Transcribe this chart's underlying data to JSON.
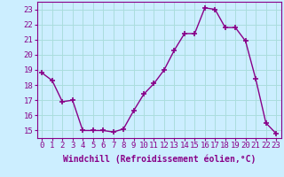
{
  "x": [
    0,
    1,
    2,
    3,
    4,
    5,
    6,
    7,
    8,
    9,
    10,
    11,
    12,
    13,
    14,
    15,
    16,
    17,
    18,
    19,
    20,
    21,
    22,
    23
  ],
  "y": [
    18.8,
    18.3,
    16.9,
    17.0,
    15.0,
    15.0,
    15.0,
    14.9,
    15.1,
    16.3,
    17.4,
    18.1,
    19.0,
    20.3,
    21.4,
    21.4,
    23.1,
    23.0,
    21.8,
    21.8,
    20.9,
    18.4,
    15.5,
    14.8
  ],
  "line_color": "#880088",
  "marker": "+",
  "marker_size": 4,
  "bg_color": "#cceeff",
  "grid_color": "#aadddd",
  "xlabel": "Windchill (Refroidissement éolien,°C)",
  "xlabel_fontsize": 7,
  "tick_fontsize": 6.5,
  "ylim": [
    14.5,
    23.5
  ],
  "yticks": [
    15,
    16,
    17,
    18,
    19,
    20,
    21,
    22,
    23
  ],
  "xticks": [
    0,
    1,
    2,
    3,
    4,
    5,
    6,
    7,
    8,
    9,
    10,
    11,
    12,
    13,
    14,
    15,
    16,
    17,
    18,
    19,
    20,
    21,
    22,
    23
  ]
}
